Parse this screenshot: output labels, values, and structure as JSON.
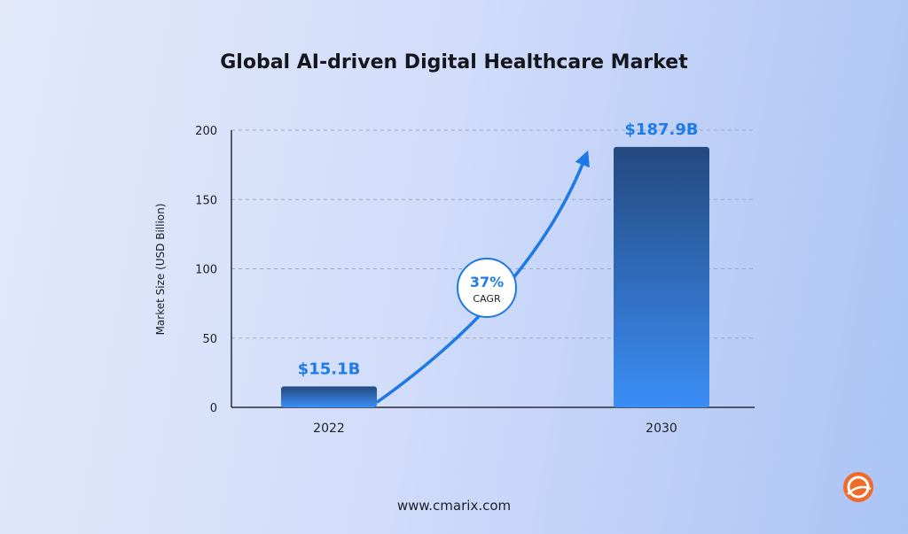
{
  "chart_data": {
    "type": "bar",
    "title": "Global AI-driven Digital Healthcare Market",
    "ylabel": "Market Size (USD Billion)",
    "xlabel": "",
    "categories": [
      "2022",
      "2030"
    ],
    "values": [
      15.1,
      187.9
    ],
    "data_labels": [
      "$15.1B",
      "$187.9B"
    ],
    "ylim": [
      0,
      200
    ],
    "yticks": [
      0,
      50,
      100,
      150,
      200
    ],
    "grid": true,
    "annotation": {
      "value": "37%",
      "label": "CAGR"
    },
    "colors": {
      "bar_top": "#24497f",
      "bar_bottom": "#3b8ef6",
      "label": "#1f7be8",
      "arrow": "#1e78e6"
    }
  },
  "footer": {
    "url": "www.cmarix.com"
  },
  "logo": {
    "icon": "cmarix-logo-icon",
    "color": "#f06a2a"
  }
}
